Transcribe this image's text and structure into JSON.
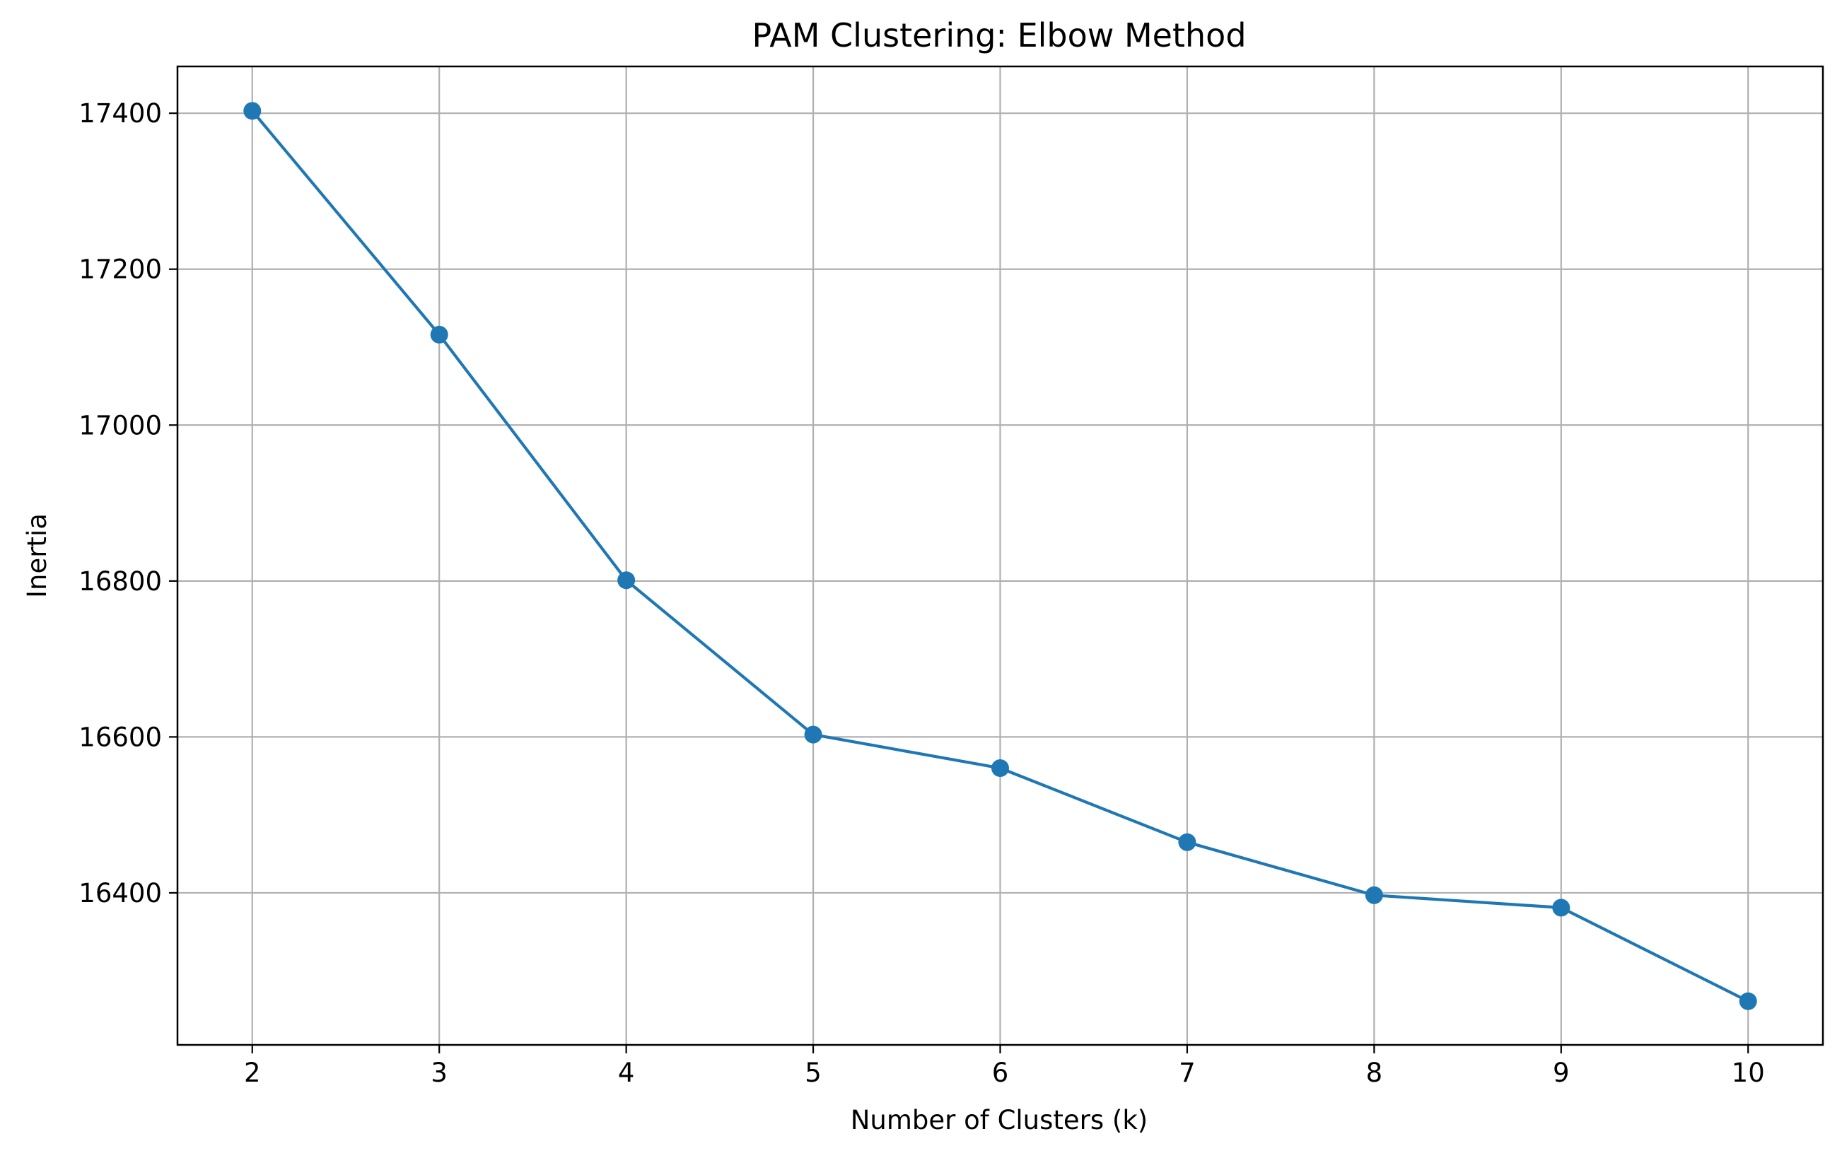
{
  "chart_data": {
    "type": "line",
    "title": "PAM Clustering: Elbow Method",
    "xlabel": "Number of Clusters (k)",
    "ylabel": "Inertia",
    "x": [
      2,
      3,
      4,
      5,
      6,
      7,
      8,
      9,
      10
    ],
    "series": [
      {
        "values": [
          17403,
          17116,
          16801,
          16603,
          16560,
          16465,
          16397,
          16381,
          16261
        ]
      }
    ],
    "xticks": [
      "2",
      "3",
      "4",
      "5",
      "6",
      "7",
      "8",
      "9",
      "10"
    ],
    "yticks": [
      "16400",
      "16600",
      "16800",
      "17000",
      "17200",
      "17400"
    ],
    "xlim": [
      1.6,
      10.4
    ],
    "ylim": [
      16205,
      17460
    ],
    "grid": true,
    "marker": "circle",
    "colors": {
      "line": "#1f77b4",
      "grid": "#b0b0b0",
      "axes": "#000000"
    }
  }
}
